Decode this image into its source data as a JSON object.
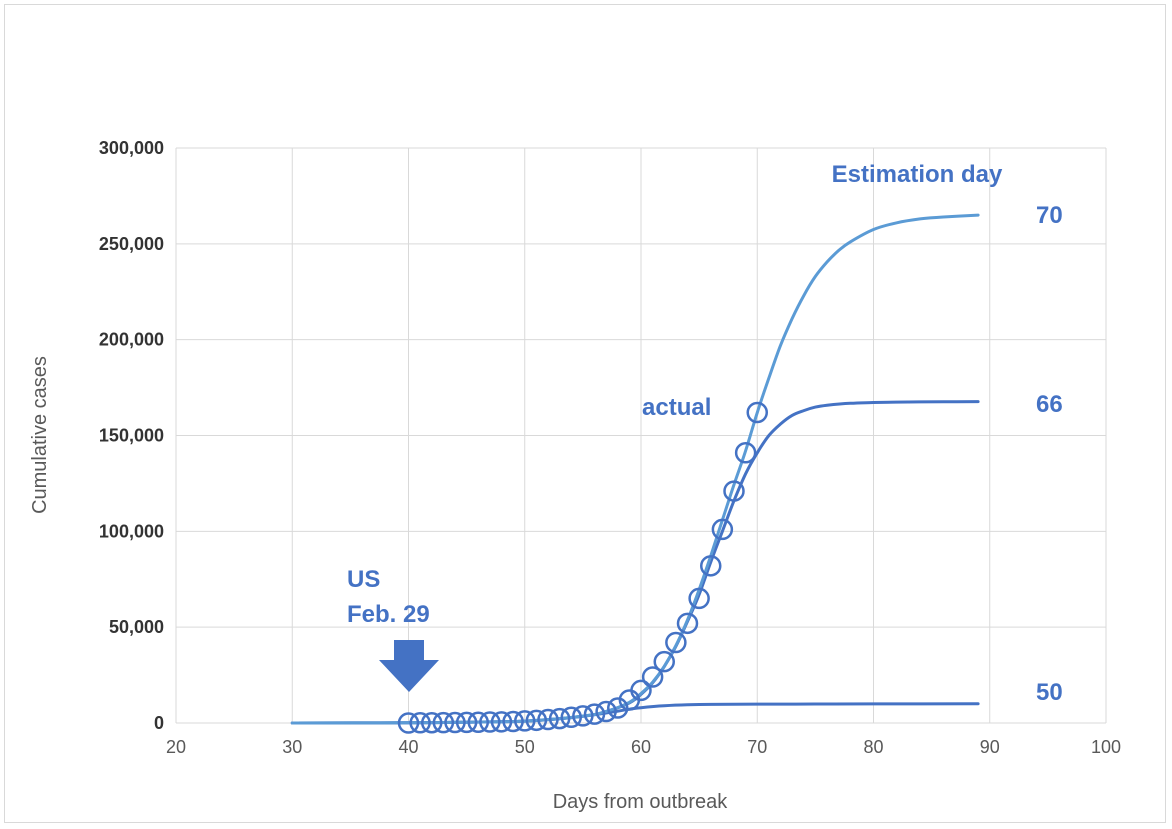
{
  "chart_data": {
    "type": "line",
    "title": "",
    "xlabel": "Days from outbreak",
    "ylabel": "Cumulative cases",
    "xlim": [
      20,
      100
    ],
    "ylim": [
      0,
      300000
    ],
    "x_ticks": [
      20,
      30,
      40,
      50,
      60,
      70,
      80,
      90,
      100
    ],
    "y_ticks": [
      0,
      50000,
      100000,
      150000,
      200000,
      250000,
      300000
    ],
    "x_tick_labels": [
      "20",
      "30",
      "40",
      "50",
      "60",
      "70",
      "80",
      "90",
      "100"
    ],
    "y_tick_labels": [
      "0",
      "50,000",
      "100,000",
      "150,000",
      "200,000",
      "250,000",
      "300,000"
    ],
    "grid": true,
    "colors": {
      "curve_70": "#5b9bd5",
      "curve_66": "#4472c4",
      "curve_50": "#4472c4",
      "actual": "#4472c4",
      "annotation": "#4472c4",
      "arrow": "#4472c4"
    },
    "series": [
      {
        "name": "70",
        "style": "line",
        "x": [
          30,
          40,
          45,
          50,
          55,
          57,
          59,
          60,
          61,
          62,
          63,
          64,
          65,
          66,
          67,
          68,
          69,
          70,
          71,
          72,
          73,
          74,
          75,
          76,
          77,
          78,
          80,
          82,
          84,
          86,
          89
        ],
        "y": [
          0,
          100,
          400,
          1000,
          3600,
          6000,
          10800,
          15400,
          21300,
          29600,
          40400,
          53800,
          69600,
          87300,
          105900,
          124400,
          142000,
          162000,
          180000,
          197000,
          211000,
          223000,
          233000,
          240500,
          246500,
          251000,
          257500,
          261000,
          263000,
          264000,
          265000
        ]
      },
      {
        "name": "66",
        "style": "line",
        "x": [
          30,
          40,
          45,
          50,
          55,
          57,
          59,
          60,
          61,
          62,
          63,
          64,
          65,
          66,
          67,
          68,
          69,
          70,
          71,
          72,
          73,
          74,
          75,
          76,
          78,
          80,
          83,
          86,
          89
        ],
        "y": [
          0,
          100,
          400,
          1000,
          3500,
          6000,
          10500,
          15000,
          21000,
          29500,
          40000,
          53000,
          67000,
          84000,
          100000,
          116000,
          130000,
          141000,
          150000,
          156000,
          160500,
          163000,
          164800,
          165800,
          166800,
          167200,
          167500,
          167600,
          167700
        ]
      },
      {
        "name": "50",
        "style": "line",
        "x": [
          30,
          40,
          45,
          50,
          53,
          55,
          57,
          59,
          60,
          62,
          64,
          66,
          70,
          75,
          80,
          89
        ],
        "y": [
          0,
          100,
          400,
          1000,
          2200,
          3500,
          5200,
          7200,
          8000,
          9000,
          9500,
          9700,
          9850,
          9900,
          9950,
          10000
        ]
      },
      {
        "name": "actual",
        "style": "markers",
        "x": [
          40,
          41,
          42,
          43,
          44,
          45,
          46,
          47,
          48,
          49,
          50,
          51,
          52,
          53,
          54,
          55,
          56,
          57,
          58,
          59,
          60,
          61,
          62,
          63,
          64,
          65,
          66,
          67,
          68,
          69,
          70
        ],
        "y": [
          0,
          100,
          150,
          200,
          250,
          300,
          400,
          500,
          600,
          800,
          1100,
          1400,
          1800,
          2300,
          3000,
          3700,
          4600,
          6000,
          7800,
          12000,
          17000,
          24000,
          32000,
          42000,
          52000,
          65000,
          82000,
          101000,
          121000,
          141000,
          162000
        ]
      }
    ],
    "annotations": {
      "estimation_title": "Estimation day",
      "label_70": "70",
      "label_66": "66",
      "label_50": "50",
      "label_actual": "actual",
      "us_line1": "US",
      "us_line2": "Feb. 29"
    }
  }
}
